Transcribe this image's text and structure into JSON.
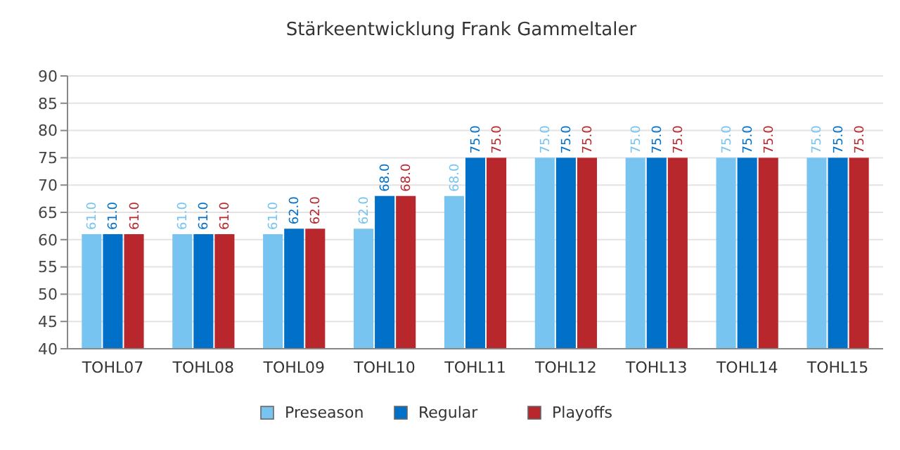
{
  "chart_data": {
    "type": "bar",
    "title": "Stärkeentwicklung Frank Gammeltaler",
    "categories": [
      "TOHL07",
      "TOHL08",
      "TOHL09",
      "TOHL10",
      "TOHL11",
      "TOHL12",
      "TOHL13",
      "TOHL14",
      "TOHL15"
    ],
    "series": [
      {
        "name": "Preseason",
        "color": "#77c4f0",
        "values": [
          61,
          61,
          61,
          62,
          68,
          75,
          75,
          75,
          75
        ],
        "value_labels": [
          "61.0",
          "61.0",
          "61.0",
          "62.0",
          "68.0",
          "75.0",
          "75.0",
          "75.0",
          "75.0"
        ]
      },
      {
        "name": "Regular",
        "color": "#0070c8",
        "values": [
          61,
          61,
          62,
          68,
          75,
          75,
          75,
          75,
          75
        ],
        "value_labels": [
          "61.0",
          "61.0",
          "62.0",
          "68.0",
          "75.0",
          "75.0",
          "75.0",
          "75.0",
          "75.0"
        ]
      },
      {
        "name": "Playoffs",
        "color": "#b8272b",
        "values": [
          61,
          61,
          62,
          68,
          75,
          75,
          75,
          75,
          75
        ],
        "value_labels": [
          "61.0",
          "61.0",
          "62.0",
          "68.0",
          "75.0",
          "75.0",
          "75.0",
          "75.0",
          "75.0"
        ]
      }
    ],
    "ylim": [
      40,
      90
    ],
    "yticks": [
      40,
      45,
      50,
      55,
      60,
      65,
      70,
      75,
      80,
      85,
      90
    ],
    "grid": "y",
    "legend": "bottom"
  }
}
